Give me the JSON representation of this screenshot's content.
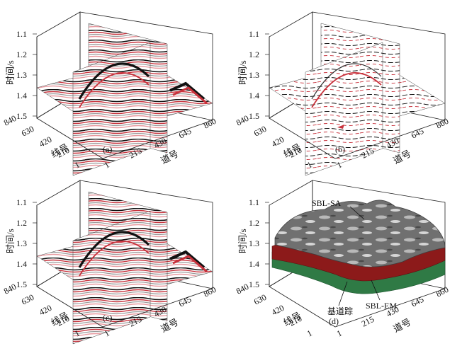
{
  "panels": [
    {
      "id": "a",
      "label": "(a)",
      "kind": "volume",
      "tint": "red"
    },
    {
      "id": "b",
      "label": "(b)",
      "kind": "volume",
      "tint": "sparse"
    },
    {
      "id": "c",
      "label": "(c)",
      "kind": "volume",
      "tint": "red"
    },
    {
      "id": "d",
      "label": "(d)",
      "kind": "surfaces"
    }
  ],
  "axes": {
    "time_label": "时间/s",
    "time_ticks": [
      "1.1",
      "1.2",
      "1.3",
      "1.4",
      "1.5"
    ],
    "line_label": "线号",
    "line_ticks": [
      "840",
      "630",
      "420",
      "210",
      "1"
    ],
    "trace_label": "道号",
    "trace_ticks": [
      "1",
      "215",
      "430",
      "645",
      "860"
    ]
  },
  "annotations": {
    "sbl_sa": "SBL-SA",
    "sbl_em": "SBL-EM",
    "base_trace": "基道踪"
  },
  "colors": {
    "red": "#c8323c",
    "pink": "#e89aa0",
    "black": "#111111",
    "gray": "#8a8a8a",
    "sa_surface": "#6e6e6e",
    "em_red": "#8c1a1a",
    "em_green": "#2f7a45"
  }
}
